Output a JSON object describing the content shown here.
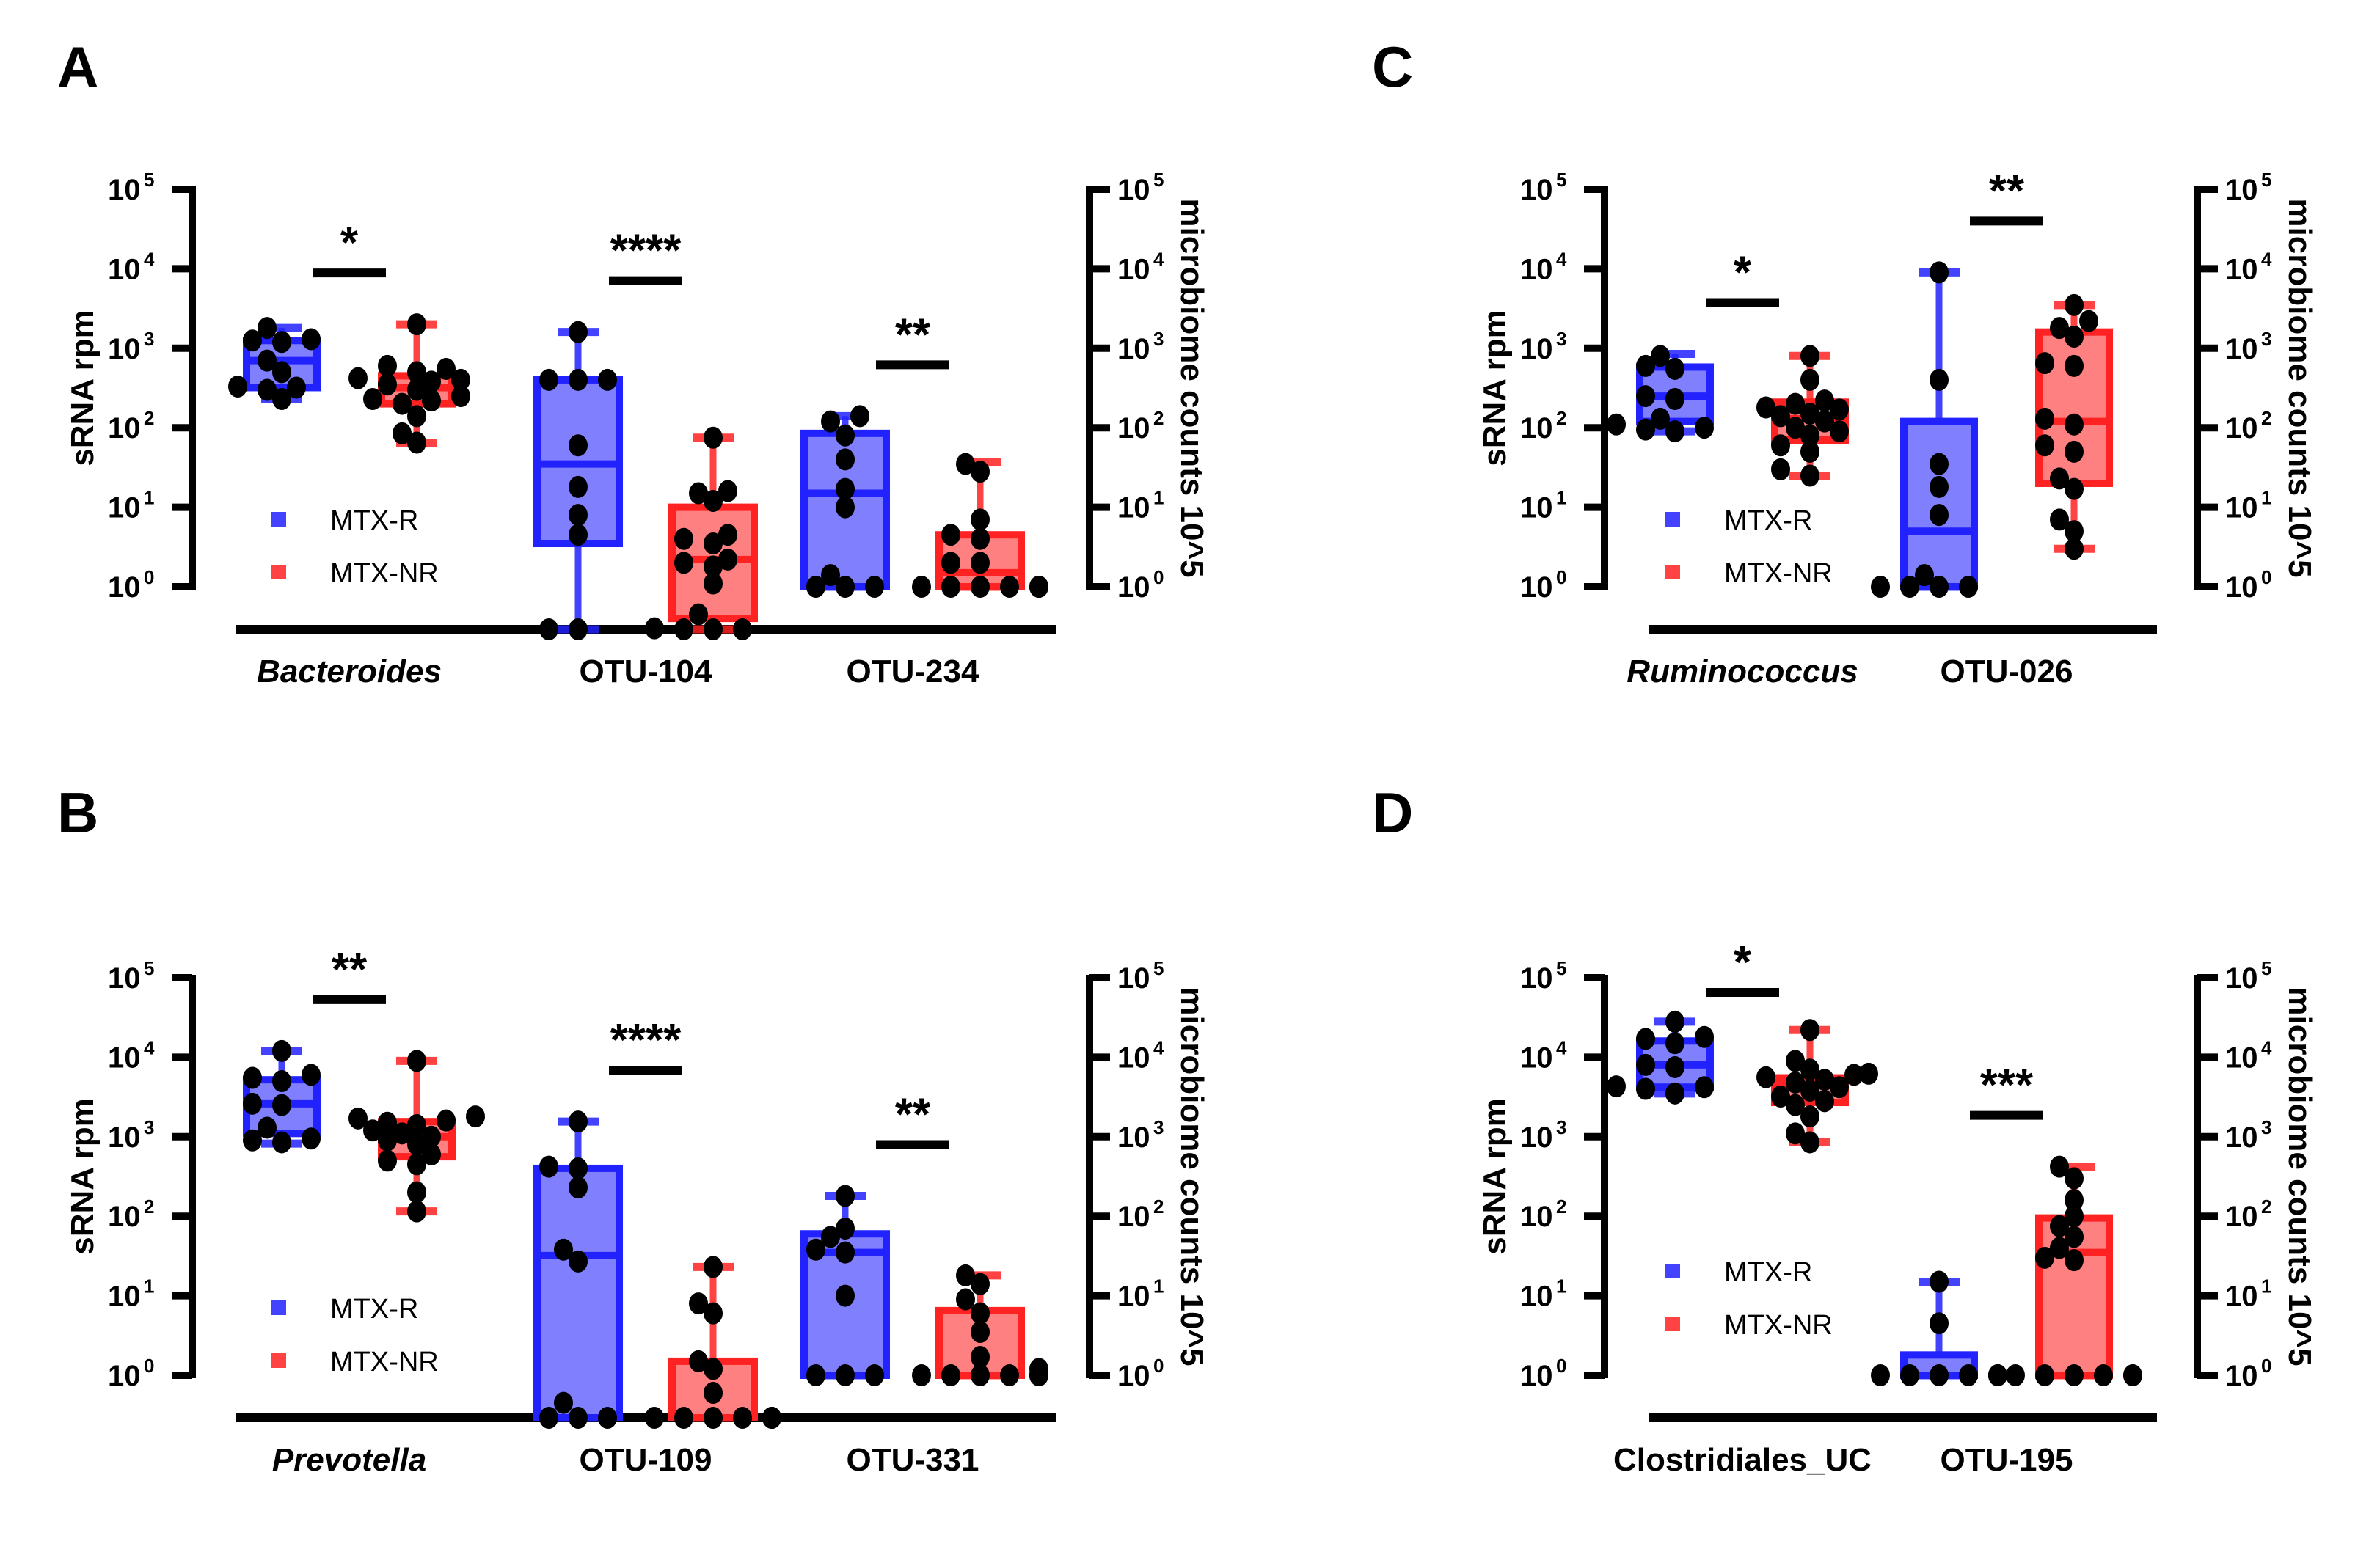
{
  "colors": {
    "responder": "#2222ff",
    "responder_fill": "#8080ff",
    "non_responder": "#ff2222",
    "non_responder_fill": "#ff8080",
    "points": "#000000",
    "axis": "#000000"
  },
  "legend": {
    "items": [
      {
        "label": "MTX-R",
        "group": "R"
      },
      {
        "label": "MTX-NR",
        "group": "NR"
      }
    ]
  },
  "chart_data": [
    {
      "panel": "A",
      "type": "box",
      "ylabel_left": "sRNA rpm",
      "ylabel_right": "microbiome counts 10^5",
      "yscale": "log",
      "ylim": [
        1,
        100000
      ],
      "yticks": [
        "10^0",
        "10^1",
        "10^2",
        "10^3",
        "10^4",
        "10^5"
      ],
      "legend_position": "lower-left",
      "categories": [
        {
          "label": "Bacteroides",
          "italic": true,
          "significance": "*",
          "groups": [
            {
              "group": "R",
              "whisker_low": 230,
              "q1": 320,
              "median": 700,
              "q3": 1250,
              "whisker_high": 1800,
              "points": [
                230,
                300,
                320,
                330,
                500,
                700,
                1200,
                1250,
                1300,
                1800
              ]
            },
            {
              "group": "NR",
              "whisker_low": 65,
              "q1": 200,
              "median": 320,
              "q3": 450,
              "whisker_high": 2000,
              "points": [
                65,
                85,
                140,
                200,
                220,
                230,
                250,
                300,
                350,
                380,
                400,
                420,
                500,
                550,
                600,
                2000
              ]
            }
          ]
        },
        {
          "label": "OTU-104",
          "italic": false,
          "significance": "****",
          "groups": [
            {
              "group": "R",
              "whisker_low": 0,
              "q1": 3.5,
              "median": 35,
              "q3": 400,
              "whisker_high": 1600,
              "points": [
                0,
                0,
                4.5,
                8,
                18,
                60,
                400,
                400,
                400,
                1600
              ]
            },
            {
              "group": "NR",
              "whisker_low": 0,
              "q1": 0.4,
              "median": 2.2,
              "q3": 10,
              "whisker_high": 75,
              "points": [
                0,
                0,
                0,
                0.3,
                0.45,
                1.1,
                1.8,
                2,
                2.2,
                3.5,
                4,
                4.5,
                12,
                15,
                16,
                75
              ]
            }
          ]
        },
        {
          "label": "OTU-234",
          "italic": false,
          "significance": "**",
          "groups": [
            {
              "group": "R",
              "whisker_low": 1,
              "q1": 1,
              "median": 15,
              "q3": 85,
              "whisker_high": 140,
              "points": [
                1,
                1,
                1,
                1.4,
                10,
                17,
                40,
                80,
                120,
                140
              ]
            },
            {
              "group": "NR",
              "whisker_low": 1,
              "q1": 1,
              "median": 1.5,
              "q3": 4.5,
              "whisker_high": 37,
              "points": [
                1,
                1,
                1,
                1,
                1,
                1,
                1,
                1,
                2,
                2,
                4,
                4.5,
                7,
                28,
                35
              ]
            }
          ]
        }
      ]
    },
    {
      "panel": "B",
      "type": "box",
      "ylabel_left": "sRNA rpm",
      "ylabel_right": "microbiome counts 10^5",
      "yscale": "log",
      "ylim": [
        1,
        100000
      ],
      "yticks": [
        "10^0",
        "10^1",
        "10^2",
        "10^3",
        "10^4",
        "10^5"
      ],
      "legend_position": "lower-left",
      "categories": [
        {
          "label": "Prevotella",
          "italic": true,
          "significance": "**",
          "groups": [
            {
              "group": "R",
              "whisker_low": 820,
              "q1": 1100,
              "median": 2600,
              "q3": 5200,
              "whisker_high": 12000,
              "points": [
                850,
                900,
                950,
                1300,
                2500,
                2600,
                5000,
                5500,
                6000,
                12000
              ]
            },
            {
              "group": "NR",
              "whisker_low": 115,
              "q1": 560,
              "median": 1000,
              "q3": 1550,
              "whisker_high": 9000,
              "points": [
                115,
                200,
                450,
                500,
                600,
                800,
                900,
                1000,
                1100,
                1200,
                1400,
                1500,
                1600,
                1700,
                1800,
                9000
              ]
            }
          ]
        },
        {
          "label": "OTU-109",
          "italic": false,
          "significance": "****",
          "groups": [
            {
              "group": "R",
              "whisker_low": 0,
              "q1": 0,
              "median": 32,
              "q3": 400,
              "whisker_high": 1550,
              "points": [
                0,
                0,
                0,
                0.45,
                27,
                38,
                230,
                400,
                420,
                1550
              ]
            },
            {
              "group": "NR",
              "whisker_low": 0,
              "q1": 0,
              "median": 0,
              "q3": 1.5,
              "whisker_high": 23,
              "points": [
                0,
                0,
                0,
                0,
                0,
                0,
                0,
                0,
                0.6,
                1.2,
                1.5,
                6,
                8,
                23
              ]
            }
          ]
        },
        {
          "label": "OTU-331",
          "italic": false,
          "significance": "**",
          "groups": [
            {
              "group": "R",
              "whisker_low": 1,
              "q1": 1,
              "median": 35,
              "q3": 60,
              "whisker_high": 180,
              "points": [
                1,
                1,
                1,
                10,
                35,
                38,
                55,
                70,
                180
              ]
            },
            {
              "group": "NR",
              "whisker_low": 1,
              "q1": 1,
              "median": 1,
              "q3": 6.5,
              "whisker_high": 18,
              "points": [
                1,
                1,
                1,
                1,
                1,
                1,
                1,
                1,
                1.2,
                1.7,
                3.5,
                6,
                9,
                14,
                18
              ]
            }
          ]
        }
      ]
    },
    {
      "panel": "C",
      "type": "box",
      "ylabel_left": "sRNA rpm",
      "ylabel_right": "microbiome counts 10^5",
      "yscale": "log",
      "ylim": [
        1,
        100000
      ],
      "yticks": [
        "10^0",
        "10^1",
        "10^2",
        "10^3",
        "10^4",
        "10^5"
      ],
      "legend_position": "lower-left",
      "categories": [
        {
          "label": "Ruminococcus",
          "italic": true,
          "significance": "*",
          "groups": [
            {
              "group": "R",
              "whisker_low": 90,
              "q1": 120,
              "median": 250,
              "q3": 580,
              "whisker_high": 850,
              "points": [
                90,
                95,
                100,
                110,
                130,
                230,
                250,
                550,
                600,
                800
              ]
            },
            {
              "group": "NR",
              "whisker_low": 25,
              "q1": 70,
              "median": 130,
              "q3": 210,
              "whisker_high": 800,
              "points": [
                25,
                30,
                50,
                60,
                80,
                90,
                100,
                120,
                140,
                150,
                170,
                180,
                200,
                220,
                400,
                800
              ]
            }
          ]
        },
        {
          "label": "OTU-026",
          "italic": false,
          "significance": "**",
          "groups": [
            {
              "group": "R",
              "whisker_low": 1,
              "q1": 1,
              "median": 5,
              "q3": 120,
              "whisker_high": 9000,
              "points": [
                1,
                1,
                1,
                1,
                1.4,
                8,
                18,
                35,
                400,
                9000
              ]
            },
            {
              "group": "NR",
              "whisker_low": 3,
              "q1": 20,
              "median": 120,
              "q3": 1600,
              "whisker_high": 3500,
              "points": [
                3,
                5,
                7,
                17,
                23,
                50,
                60,
                110,
                130,
                600,
                650,
                1400,
                1800,
                2200,
                3500
              ]
            }
          ]
        }
      ]
    },
    {
      "panel": "D",
      "type": "box",
      "ylabel_left": "sRNA rpm",
      "ylabel_right": "microbiome counts 10^5",
      "yscale": "log",
      "ylim": [
        1,
        100000
      ],
      "yticks": [
        "10^0",
        "10^1",
        "10^2",
        "10^3",
        "10^4",
        "10^5"
      ],
      "legend_position": "lower-left",
      "categories": [
        {
          "label": "Clostridiales_UC",
          "italic": false,
          "significance": "*",
          "groups": [
            {
              "group": "R",
              "whisker_low": 3500,
              "q1": 4200,
              "median": 8000,
              "q3": 16000,
              "whisker_high": 28000,
              "points": [
                3500,
                4000,
                4200,
                4300,
                7500,
                8000,
                15000,
                17000,
                18000,
                28000
              ]
            },
            {
              "group": "NR",
              "whisker_low": 850,
              "q1": 2700,
              "median": 4500,
              "q3": 5500,
              "whisker_high": 22000,
              "points": [
                850,
                1100,
                1800,
                2500,
                2800,
                3200,
                3800,
                4200,
                4800,
                5200,
                5600,
                6000,
                6200,
                7000,
                9000,
                22000
              ]
            }
          ]
        },
        {
          "label": "OTU-195",
          "italic": false,
          "significance": "***",
          "groups": [
            {
              "group": "R",
              "whisker_low": 1,
              "q1": 1,
              "median": 1,
              "q3": 1.8,
              "whisker_high": 15,
              "points": [
                1,
                1,
                1,
                1,
                1,
                1,
                1,
                1,
                4.5,
                15
              ]
            },
            {
              "group": "NR",
              "whisker_low": 1,
              "q1": 1,
              "median": 35,
              "q3": 95,
              "whisker_high": 420,
              "points": [
                1,
                1,
                1,
                1,
                1,
                1,
                28,
                30,
                40,
                55,
                75,
                100,
                160,
                300,
                420
              ]
            }
          ]
        }
      ]
    }
  ]
}
